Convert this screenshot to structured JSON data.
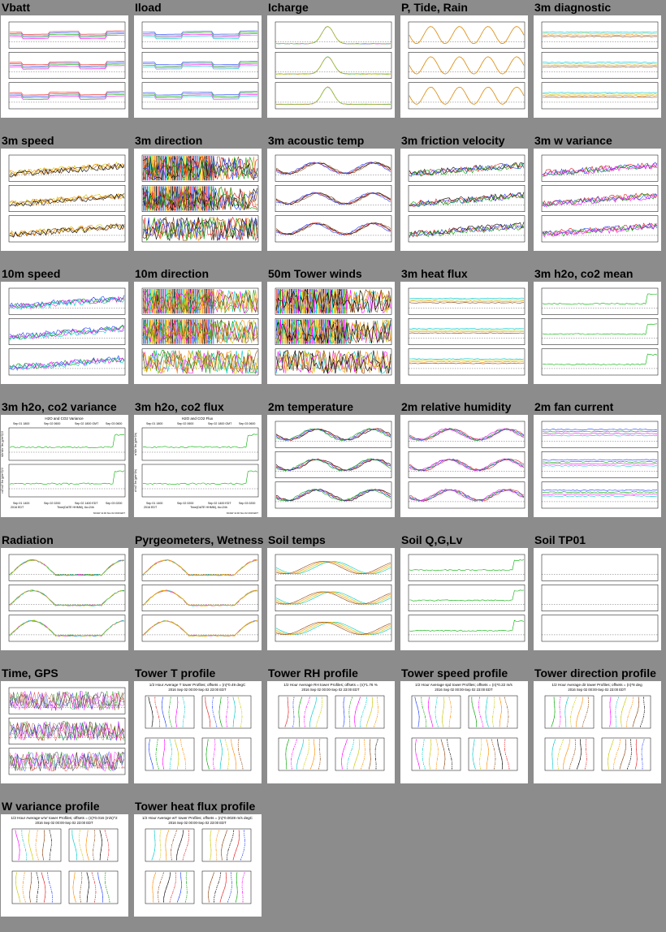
{
  "page": {
    "background": "#8c8c8c"
  },
  "thumbnails": [
    {
      "title": "Vbatt",
      "kind": "ts3",
      "style": "steps"
    },
    {
      "title": "Iload",
      "kind": "ts3",
      "style": "steps"
    },
    {
      "title": "Icharge",
      "kind": "ts3",
      "style": "spike"
    },
    {
      "title": "P, Tide, Rain",
      "kind": "ts3",
      "style": "tide"
    },
    {
      "title": "3m diagnostic",
      "kind": "ts3",
      "style": "flat"
    },
    {
      "title": "3m speed",
      "kind": "ts3",
      "style": "noisy"
    },
    {
      "title": "3m direction",
      "kind": "ts3",
      "style": "direction"
    },
    {
      "title": "3m acoustic temp",
      "kind": "ts3",
      "style": "wave"
    },
    {
      "title": "3m friction velocity",
      "kind": "ts3",
      "style": "noisy"
    },
    {
      "title": "3m w variance",
      "kind": "ts3",
      "style": "noisy"
    },
    {
      "title": "10m speed",
      "kind": "ts3",
      "style": "noisy"
    },
    {
      "title": "10m direction",
      "kind": "ts3",
      "style": "direction"
    },
    {
      "title": "50m Tower winds",
      "kind": "ts3",
      "style": "direction"
    },
    {
      "title": "3m heat flux",
      "kind": "ts3",
      "style": "flat"
    },
    {
      "title": "3m h2o, co2 mean",
      "kind": "ts3",
      "style": "green"
    },
    {
      "title": "3m h2o, co2 variance",
      "kind": "ts2",
      "style": "green",
      "heading": "H2O and CO2 Variance",
      "ticks": [
        "Sep 01 1800",
        "Sep 02 0600",
        "Sep 02 1800 GMT",
        "Sep 03 0600"
      ],
      "bottom": [
        "Sep 01 1400",
        "Sep 02 0200",
        "Sep 02 1400 EDT",
        "Sep 03 0200"
      ],
      "xlabel": "Time(DATE HHMM), tlo=24h",
      "year": "2016 EDT",
      "ylabels": [
        "h2o'h2o' 3m (g/m^3)^2",
        "co2'co2' 3m (g/m^3)^2"
      ],
      "footer": "NCAR/ 11:46 Nov 02 2016 EDT"
    },
    {
      "title": "3m h2o, co2 flux",
      "kind": "ts2",
      "style": "green",
      "heading": "H2O and CO2 Flux",
      "ticks": [
        "Sep 01 1800",
        "Sep 02 0600",
        "Sep 02 1800 GMT",
        "Sep 03 0600"
      ],
      "bottom": [
        "Sep 01 1400",
        "Sep 02 0200",
        "Sep 02 1400 EDT",
        "Sep 03 0200"
      ],
      "xlabel": "Time(DATE HHMM), tlo=24h",
      "year": "2016 EDT",
      "ylabels": [
        "w'h2o' 3m (g/m^2/s)",
        "w'co2' 3m (g/m^2/s)"
      ],
      "footer": "NCAR/ 11:46 Nov 02 2016 EDT"
    },
    {
      "title": "2m temperature",
      "kind": "ts3",
      "style": "wave"
    },
    {
      "title": "2m relative humidity",
      "kind": "ts3",
      "style": "wave"
    },
    {
      "title": "2m fan current",
      "kind": "ts3",
      "style": "fan"
    },
    {
      "title": "Radiation",
      "kind": "ts3",
      "style": "radiation"
    },
    {
      "title": "Pyrgeometers, Wetness",
      "kind": "ts3",
      "style": "radiation"
    },
    {
      "title": "Soil temps",
      "kind": "ts3",
      "style": "soil"
    },
    {
      "title": "Soil Q,G,Lv",
      "kind": "ts3",
      "style": "green"
    },
    {
      "title": "Soil TP01",
      "kind": "ts3",
      "style": "empty"
    },
    {
      "title": "Time, GPS",
      "kind": "ts3",
      "style": "gps"
    },
    {
      "title": "Tower T profile",
      "kind": "profile",
      "heading": "1/2 Hour Average T tower Profiles; offsets = (n)*0.49 degC",
      "sub": "2016 Sep 02 00:00-Sep 02 23:00 EDT"
    },
    {
      "title": "Tower RH profile",
      "kind": "profile",
      "heading": "1/2 Hour Average RH tower Profiles; offsets = (n)*1.76 %",
      "sub": "2016 Sep 02 00:00-Sep 02 23:00 EDT"
    },
    {
      "title": "Tower speed profile",
      "kind": "profile",
      "heading": "1/2 Hour Average spd tower Profiles; offsets = (n)*0.22 m/s",
      "sub": "2016 Sep 02 00:00-Sep 02 23:00 EDT"
    },
    {
      "title": "Tower direction profile",
      "kind": "profile",
      "heading": "1/2 Hour Average dir tower Profiles; offsets = (n)*8 deg",
      "sub": "2016 Sep 02 00:00-Sep 02 23:00 EDT"
    },
    {
      "title": "W variance profile",
      "kind": "profile",
      "heading": "1/2 Hour Average w'w' tower Profiles; offsets = (n)*0.016 (m/s)^2",
      "sub": "2016 Sep 02 00:00-Sep 02 23:00 EDT"
    },
    {
      "title": "Tower heat flux profile",
      "kind": "profile",
      "heading": "1/2 Hour Average w't' tower Profiles; offsets = (n)*0.0028 m/s degC",
      "sub": "2016 Sep 02 00:00-Sep 02 23:00 EDT"
    }
  ]
}
